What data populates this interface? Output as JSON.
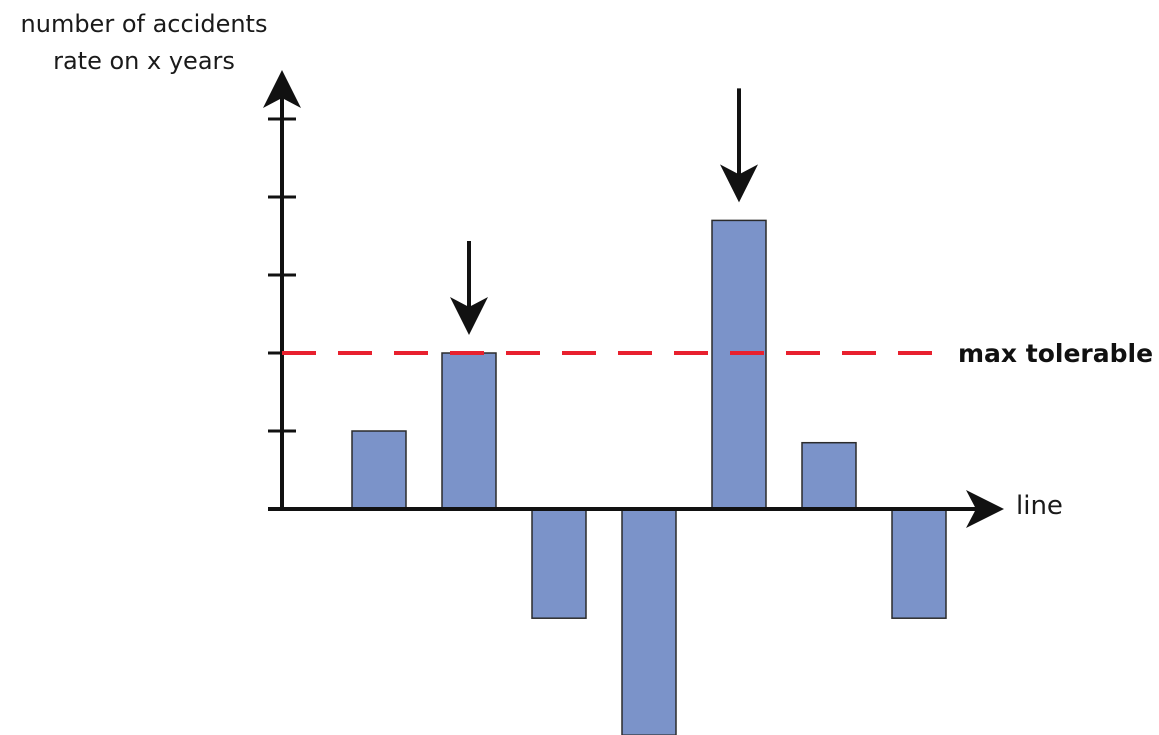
{
  "chart_data": {
    "type": "bar",
    "ylabel_lines": [
      "number of accidents",
      "rate on x years"
    ],
    "xlabel": "line",
    "values": [
      1,
      2,
      -1.4,
      -2.9,
      3.7,
      0.85,
      -1.4
    ],
    "ylim": [
      -2.9,
      5
    ],
    "reference_line": {
      "value": 2,
      "label": "max tolerable",
      "color": "#e8202e",
      "style": "dashed"
    },
    "highlighted_bars": [
      1,
      4
    ],
    "bar_color": "#7b93c9",
    "grid": false
  }
}
